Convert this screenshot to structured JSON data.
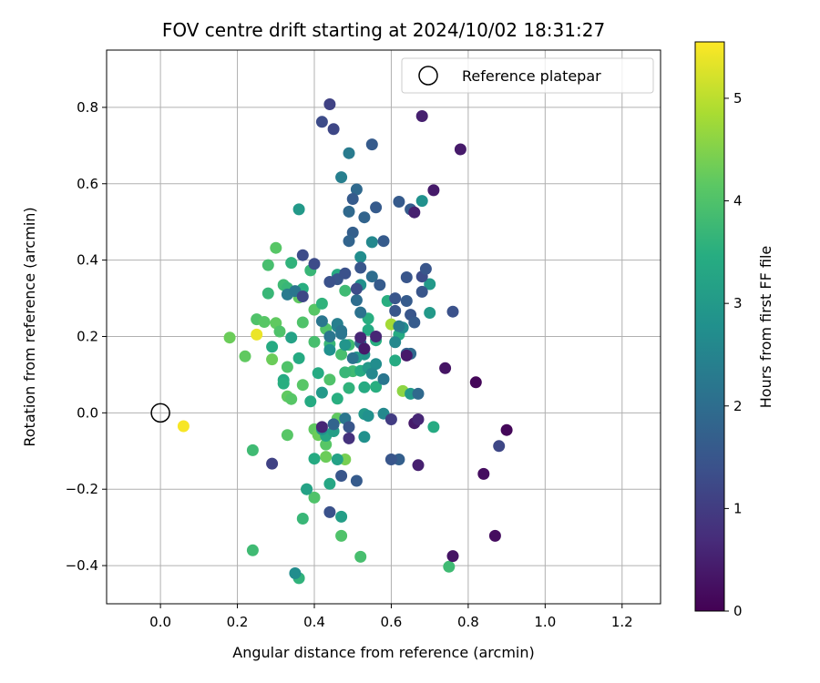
{
  "chart_data": {
    "type": "scatter",
    "title": "FOV centre drift starting at 2024/10/02 18:31:27",
    "xlabel": "Angular distance from reference (arcmin)",
    "ylabel": "Rotation from reference (arcmin)",
    "xlim": [
      -0.14,
      1.3
    ],
    "ylim": [
      -0.5,
      0.95
    ],
    "x_ticks": [
      0.0,
      0.2,
      0.4,
      0.6,
      0.8,
      1.0,
      1.2
    ],
    "x_tick_labels": [
      "0.0",
      "0.2",
      "0.4",
      "0.6",
      "0.8",
      "1.0",
      "1.2"
    ],
    "y_ticks": [
      -0.4,
      -0.2,
      0.0,
      0.2,
      0.4,
      0.6,
      0.8
    ],
    "y_tick_labels": [
      "−0.4",
      "−0.2",
      "0.0",
      "0.2",
      "0.4",
      "0.6",
      "0.8"
    ],
    "grid": true,
    "legend": {
      "placement": "top-right",
      "entries": [
        "Reference platepar"
      ]
    },
    "colorbar": {
      "label": "Hours from first FF file",
      "range": [
        0,
        5.55
      ],
      "ticks": [
        0,
        1,
        2,
        3,
        4,
        5
      ],
      "tick_labels": [
        "0",
        "1",
        "2",
        "3",
        "4",
        "5"
      ],
      "colormap": "viridis"
    },
    "reference_point": {
      "x": 0.0,
      "y": 0.0
    },
    "points": [
      {
        "x": 0.06,
        "y": -0.035,
        "c": 5.5
      },
      {
        "x": 0.25,
        "y": 0.205,
        "c": 5.4
      },
      {
        "x": 0.6,
        "y": 0.232,
        "c": 4.8
      },
      {
        "x": 0.63,
        "y": 0.057,
        "c": 4.6
      },
      {
        "x": 0.18,
        "y": 0.197,
        "c": 4.3
      },
      {
        "x": 0.22,
        "y": 0.148,
        "c": 4.2
      },
      {
        "x": 0.3,
        "y": 0.432,
        "c": 4.1
      },
      {
        "x": 0.25,
        "y": 0.245,
        "c": 4.0
      },
      {
        "x": 0.27,
        "y": 0.238,
        "c": 4.1
      },
      {
        "x": 0.29,
        "y": 0.14,
        "c": 4.3
      },
      {
        "x": 0.33,
        "y": 0.12,
        "c": 4.0
      },
      {
        "x": 0.3,
        "y": 0.235,
        "c": 4.2
      },
      {
        "x": 0.31,
        "y": 0.213,
        "c": 4.0
      },
      {
        "x": 0.36,
        "y": 0.302,
        "c": 4.2
      },
      {
        "x": 0.37,
        "y": 0.237,
        "c": 4.0
      },
      {
        "x": 0.4,
        "y": 0.27,
        "c": 4.1
      },
      {
        "x": 0.43,
        "y": 0.22,
        "c": 4.0
      },
      {
        "x": 0.4,
        "y": 0.186,
        "c": 3.9
      },
      {
        "x": 0.44,
        "y": 0.087,
        "c": 4.0
      },
      {
        "x": 0.37,
        "y": 0.073,
        "c": 4.1
      },
      {
        "x": 0.33,
        "y": 0.043,
        "c": 4.2
      },
      {
        "x": 0.34,
        "y": 0.036,
        "c": 4.1
      },
      {
        "x": 0.4,
        "y": -0.043,
        "c": 4.2
      },
      {
        "x": 0.41,
        "y": -0.058,
        "c": 4.3
      },
      {
        "x": 0.43,
        "y": -0.083,
        "c": 4.1
      },
      {
        "x": 0.43,
        "y": -0.115,
        "c": 4.3
      },
      {
        "x": 0.46,
        "y": -0.015,
        "c": 4.2
      },
      {
        "x": 0.48,
        "y": -0.122,
        "c": 4.4
      },
      {
        "x": 0.33,
        "y": -0.058,
        "c": 4.1
      },
      {
        "x": 0.38,
        "y": -0.2,
        "c": 4.2
      },
      {
        "x": 0.4,
        "y": -0.222,
        "c": 4.0
      },
      {
        "x": 0.47,
        "y": -0.322,
        "c": 4.0
      },
      {
        "x": 0.52,
        "y": -0.377,
        "c": 3.9
      },
      {
        "x": 0.24,
        "y": -0.36,
        "c": 3.8
      },
      {
        "x": 0.24,
        "y": -0.098,
        "c": 3.8
      },
      {
        "x": 0.36,
        "y": -0.433,
        "c": 3.6
      },
      {
        "x": 0.75,
        "y": -0.403,
        "c": 3.8
      },
      {
        "x": 0.71,
        "y": -0.037,
        "c": 3.4
      },
      {
        "x": 0.28,
        "y": 0.387,
        "c": 3.9
      },
      {
        "x": 0.28,
        "y": 0.313,
        "c": 3.7
      },
      {
        "x": 0.32,
        "y": 0.335,
        "c": 3.8
      },
      {
        "x": 0.33,
        "y": 0.327,
        "c": 3.7
      },
      {
        "x": 0.34,
        "y": 0.393,
        "c": 3.6
      },
      {
        "x": 0.37,
        "y": 0.325,
        "c": 3.5
      },
      {
        "x": 0.39,
        "y": 0.373,
        "c": 3.7
      },
      {
        "x": 0.42,
        "y": 0.286,
        "c": 3.6
      },
      {
        "x": 0.46,
        "y": 0.362,
        "c": 3.4
      },
      {
        "x": 0.48,
        "y": 0.32,
        "c": 3.8
      },
      {
        "x": 0.44,
        "y": 0.18,
        "c": 3.7
      },
      {
        "x": 0.47,
        "y": 0.153,
        "c": 3.9
      },
      {
        "x": 0.49,
        "y": 0.178,
        "c": 3.8
      },
      {
        "x": 0.5,
        "y": 0.109,
        "c": 3.8
      },
      {
        "x": 0.48,
        "y": 0.106,
        "c": 3.7
      },
      {
        "x": 0.49,
        "y": 0.065,
        "c": 3.6
      },
      {
        "x": 0.46,
        "y": 0.037,
        "c": 3.5
      },
      {
        "x": 0.54,
        "y": 0.217,
        "c": 3.4
      },
      {
        "x": 0.56,
        "y": 0.19,
        "c": 3.5
      },
      {
        "x": 0.52,
        "y": 0.11,
        "c": 3.4
      },
      {
        "x": 0.53,
        "y": 0.067,
        "c": 3.4
      },
      {
        "x": 0.56,
        "y": 0.068,
        "c": 3.5
      },
      {
        "x": 0.29,
        "y": 0.173,
        "c": 3.4
      },
      {
        "x": 0.32,
        "y": 0.086,
        "c": 3.4
      },
      {
        "x": 0.32,
        "y": 0.077,
        "c": 3.5
      },
      {
        "x": 0.36,
        "y": 0.143,
        "c": 3.4
      },
      {
        "x": 0.34,
        "y": 0.197,
        "c": 3.2
      },
      {
        "x": 0.39,
        "y": 0.03,
        "c": 3.4
      },
      {
        "x": 0.4,
        "y": -0.12,
        "c": 3.4
      },
      {
        "x": 0.41,
        "y": 0.104,
        "c": 3.4
      },
      {
        "x": 0.43,
        "y": -0.06,
        "c": 3.3
      },
      {
        "x": 0.44,
        "y": -0.186,
        "c": 3.3
      },
      {
        "x": 0.46,
        "y": -0.122,
        "c": 3.2
      },
      {
        "x": 0.47,
        "y": -0.272,
        "c": 3.1
      },
      {
        "x": 0.37,
        "y": -0.277,
        "c": 3.7
      },
      {
        "x": 0.38,
        "y": -0.2,
        "c": 3.2
      },
      {
        "x": 0.36,
        "y": 0.533,
        "c": 3.0
      },
      {
        "x": 0.35,
        "y": -0.42,
        "c": 2.7
      },
      {
        "x": 0.54,
        "y": 0.247,
        "c": 3.5
      },
      {
        "x": 0.59,
        "y": 0.293,
        "c": 3.5
      },
      {
        "x": 0.61,
        "y": 0.137,
        "c": 3.4
      },
      {
        "x": 0.62,
        "y": 0.205,
        "c": 3.4
      },
      {
        "x": 0.65,
        "y": 0.05,
        "c": 3.0
      },
      {
        "x": 0.7,
        "y": 0.262,
        "c": 3.0
      },
      {
        "x": 0.7,
        "y": 0.337,
        "c": 3.0
      },
      {
        "x": 0.68,
        "y": 0.555,
        "c": 2.8
      },
      {
        "x": 0.47,
        "y": 0.617,
        "c": 2.4
      },
      {
        "x": 0.49,
        "y": 0.68,
        "c": 2.3
      },
      {
        "x": 0.52,
        "y": 0.408,
        "c": 2.7
      },
      {
        "x": 0.55,
        "y": 0.447,
        "c": 2.6
      },
      {
        "x": 0.52,
        "y": 0.335,
        "c": 2.8
      },
      {
        "x": 0.53,
        "y": 0.153,
        "c": 2.9
      },
      {
        "x": 0.51,
        "y": 0.145,
        "c": 3.0
      },
      {
        "x": 0.54,
        "y": 0.118,
        "c": 3.0
      },
      {
        "x": 0.53,
        "y": -0.003,
        "c": 3.0
      },
      {
        "x": 0.54,
        "y": -0.008,
        "c": 2.8
      },
      {
        "x": 0.53,
        "y": -0.063,
        "c": 2.8
      },
      {
        "x": 0.45,
        "y": -0.048,
        "c": 3.1
      },
      {
        "x": 0.42,
        "y": 0.053,
        "c": 3.0
      },
      {
        "x": 0.44,
        "y": 0.165,
        "c": 2.8
      },
      {
        "x": 0.46,
        "y": 0.226,
        "c": 2.7
      },
      {
        "x": 0.48,
        "y": 0.178,
        "c": 2.9
      },
      {
        "x": 0.42,
        "y": -0.043,
        "c": 2.8
      },
      {
        "x": 0.63,
        "y": 0.223,
        "c": 2.7
      },
      {
        "x": 0.61,
        "y": 0.185,
        "c": 2.6
      },
      {
        "x": 0.56,
        "y": 0.128,
        "c": 2.7
      },
      {
        "x": 0.55,
        "y": 0.103,
        "c": 2.6
      },
      {
        "x": 0.58,
        "y": 0.088,
        "c": 2.2
      },
      {
        "x": 0.58,
        "y": -0.002,
        "c": 2.6
      },
      {
        "x": 0.46,
        "y": 0.233,
        "c": 2.4
      },
      {
        "x": 0.47,
        "y": 0.207,
        "c": 2.2
      },
      {
        "x": 0.44,
        "y": 0.2,
        "c": 2.2
      },
      {
        "x": 0.42,
        "y": 0.24,
        "c": 2.2
      },
      {
        "x": 0.33,
        "y": 0.31,
        "c": 2.3
      },
      {
        "x": 0.35,
        "y": 0.319,
        "c": 2.2
      },
      {
        "x": 0.47,
        "y": 0.215,
        "c": 2.2
      },
      {
        "x": 0.48,
        "y": -0.015,
        "c": 2.2
      },
      {
        "x": 0.5,
        "y": 0.143,
        "c": 2.1
      },
      {
        "x": 0.52,
        "y": 0.263,
        "c": 2.1
      },
      {
        "x": 0.52,
        "y": 0.183,
        "c": 2.0
      },
      {
        "x": 0.55,
        "y": 0.357,
        "c": 2.0
      },
      {
        "x": 0.51,
        "y": 0.295,
        "c": 2.0
      },
      {
        "x": 0.49,
        "y": 0.527,
        "c": 1.9
      },
      {
        "x": 0.51,
        "y": 0.585,
        "c": 1.9
      },
      {
        "x": 0.53,
        "y": 0.512,
        "c": 1.8
      },
      {
        "x": 0.5,
        "y": 0.56,
        "c": 1.6
      },
      {
        "x": 0.55,
        "y": 0.703,
        "c": 1.6
      },
      {
        "x": 0.56,
        "y": 0.538,
        "c": 1.6
      },
      {
        "x": 0.5,
        "y": 0.472,
        "c": 1.7
      },
      {
        "x": 0.49,
        "y": 0.45,
        "c": 1.8
      },
      {
        "x": 0.58,
        "y": 0.45,
        "c": 1.6
      },
      {
        "x": 0.57,
        "y": 0.335,
        "c": 1.6
      },
      {
        "x": 0.61,
        "y": 0.3,
        "c": 1.5
      },
      {
        "x": 0.61,
        "y": 0.267,
        "c": 1.5
      },
      {
        "x": 0.64,
        "y": 0.355,
        "c": 1.5
      },
      {
        "x": 0.64,
        "y": 0.293,
        "c": 1.6
      },
      {
        "x": 0.65,
        "y": 0.257,
        "c": 1.5
      },
      {
        "x": 0.64,
        "y": 0.155,
        "c": 1.7
      },
      {
        "x": 0.65,
        "y": 0.155,
        "c": 1.9
      },
      {
        "x": 0.62,
        "y": 0.227,
        "c": 2.3
      },
      {
        "x": 0.65,
        "y": 0.533,
        "c": 1.6
      },
      {
        "x": 0.62,
        "y": 0.553,
        "c": 1.6
      },
      {
        "x": 0.68,
        "y": 0.357,
        "c": 1.3
      },
      {
        "x": 0.69,
        "y": 0.377,
        "c": 1.5
      },
      {
        "x": 0.68,
        "y": 0.317,
        "c": 1.5
      },
      {
        "x": 0.66,
        "y": 0.237,
        "c": 1.6
      },
      {
        "x": 0.67,
        "y": 0.05,
        "c": 1.9
      },
      {
        "x": 0.62,
        "y": -0.122,
        "c": 1.7
      },
      {
        "x": 0.6,
        "y": -0.122,
        "c": 1.5
      },
      {
        "x": 0.51,
        "y": -0.178,
        "c": 1.6
      },
      {
        "x": 0.47,
        "y": -0.165,
        "c": 1.5
      },
      {
        "x": 0.45,
        "y": -0.03,
        "c": 1.8
      },
      {
        "x": 0.49,
        "y": -0.037,
        "c": 1.5
      },
      {
        "x": 0.44,
        "y": -0.26,
        "c": 1.4
      },
      {
        "x": 0.29,
        "y": -0.133,
        "c": 1.1
      },
      {
        "x": 0.46,
        "y": 0.35,
        "c": 1.5
      },
      {
        "x": 0.44,
        "y": 0.343,
        "c": 1.4
      },
      {
        "x": 0.48,
        "y": 0.365,
        "c": 1.4
      },
      {
        "x": 0.52,
        "y": 0.38,
        "c": 1.5
      },
      {
        "x": 0.51,
        "y": 0.325,
        "c": 1.3
      },
      {
        "x": 0.37,
        "y": 0.413,
        "c": 1.3
      },
      {
        "x": 0.4,
        "y": 0.39,
        "c": 1.3
      },
      {
        "x": 0.37,
        "y": 0.305,
        "c": 1.2
      },
      {
        "x": 0.44,
        "y": 0.808,
        "c": 1.1
      },
      {
        "x": 0.42,
        "y": 0.762,
        "c": 1.3
      },
      {
        "x": 0.45,
        "y": 0.743,
        "c": 1.2
      },
      {
        "x": 0.76,
        "y": 0.265,
        "c": 1.4
      },
      {
        "x": 0.88,
        "y": -0.087,
        "c": 1.2
      },
      {
        "x": 0.6,
        "y": -0.017,
        "c": 1.0
      },
      {
        "x": 0.49,
        "y": -0.067,
        "c": 0.8
      },
      {
        "x": 0.42,
        "y": -0.037,
        "c": 0.6
      },
      {
        "x": 0.52,
        "y": 0.197,
        "c": 0.6
      },
      {
        "x": 0.53,
        "y": 0.168,
        "c": 0.4
      },
      {
        "x": 0.56,
        "y": 0.2,
        "c": 0.6
      },
      {
        "x": 0.64,
        "y": 0.15,
        "c": 0.4
      },
      {
        "x": 0.66,
        "y": 0.525,
        "c": 0.5
      },
      {
        "x": 0.66,
        "y": -0.027,
        "c": 0.4
      },
      {
        "x": 0.67,
        "y": -0.017,
        "c": 0.6
      },
      {
        "x": 0.67,
        "y": -0.137,
        "c": 0.5
      },
      {
        "x": 0.68,
        "y": 0.777,
        "c": 0.5
      },
      {
        "x": 0.71,
        "y": 0.583,
        "c": 0.4
      },
      {
        "x": 0.74,
        "y": 0.117,
        "c": 0.3
      },
      {
        "x": 0.76,
        "y": -0.375,
        "c": 0.3
      },
      {
        "x": 0.78,
        "y": 0.69,
        "c": 0.4
      },
      {
        "x": 0.82,
        "y": 0.08,
        "c": 0.1
      },
      {
        "x": 0.84,
        "y": -0.16,
        "c": 0.2
      },
      {
        "x": 0.87,
        "y": -0.322,
        "c": 0.2
      },
      {
        "x": 0.9,
        "y": -0.045,
        "c": 0.1
      }
    ]
  }
}
